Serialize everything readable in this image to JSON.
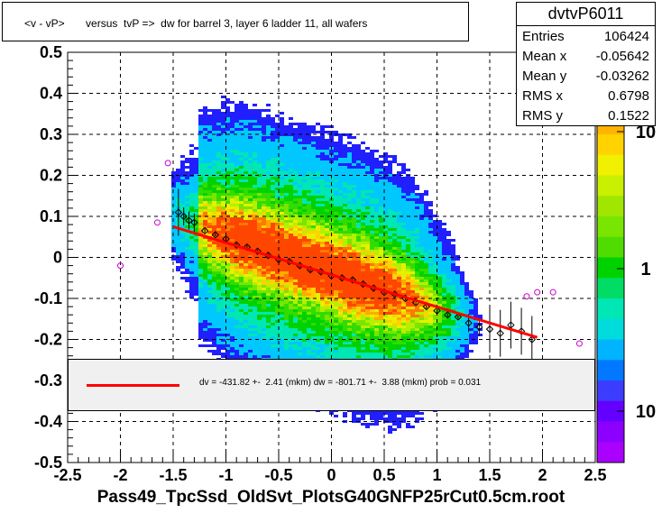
{
  "title": "<v - vP>       versus  tvP =>  dw for barrel 3, layer 6 ladder 11, all wafers",
  "footer": "Pass49_TpcSsd_OldSvt_PlotsG40GNFP25rCut0.5cm.root",
  "stats": {
    "name": "dvtvP6011",
    "rows": [
      {
        "label": "Entries",
        "value": "106424"
      },
      {
        "label": "Mean x",
        "value": "-0.05642"
      },
      {
        "label": "Mean y",
        "value": "-0.03262"
      },
      {
        "label": "RMS x",
        "value": "0.6798"
      },
      {
        "label": "RMS y",
        "value": "0.1522"
      }
    ]
  },
  "legend": {
    "text": "dv = -431.82 +-  2.41 (mkm) dw = -801.71 +-  3.88 (mkm) prob = 0.031",
    "line_color": "#ff0000"
  },
  "chart_data": {
    "type": "heatmap",
    "xlim": [
      -2.5,
      2.5
    ],
    "ylim": [
      -0.5,
      0.5
    ],
    "xticks": [
      "-2.5",
      "-2",
      "-1.5",
      "-1",
      "-0.5",
      "0",
      "0.5",
      "1",
      "1.5",
      "2",
      "2.5"
    ],
    "yticks": [
      "-0.5",
      "-0.4",
      "-0.3",
      "-0.2",
      "-0.1",
      "0",
      "0.1",
      "0.2",
      "0.3",
      "0.4",
      "0.5"
    ],
    "colorbar_labels": [
      "10",
      "1",
      "10"
    ],
    "log_z": true,
    "grid": true,
    "fit_line": {
      "x": [
        -1.5,
        1.95
      ],
      "y": [
        0.075,
        -0.195
      ],
      "color": "#ff0000"
    },
    "profile_points": {
      "x": [
        -1.45,
        -1.4,
        -1.35,
        -1.3,
        -1.2,
        -1.1,
        -1.0,
        -0.9,
        -0.8,
        -0.7,
        -0.6,
        -0.5,
        -0.4,
        -0.3,
        -0.2,
        -0.1,
        0.0,
        0.1,
        0.2,
        0.3,
        0.4,
        0.5,
        0.6,
        0.7,
        0.8,
        0.9,
        1.0,
        1.1,
        1.2,
        1.3,
        1.4,
        1.5,
        1.6,
        1.7,
        1.8,
        1.9
      ],
      "y": [
        0.11,
        0.1,
        0.09,
        0.085,
        0.065,
        0.055,
        0.045,
        0.03,
        0.025,
        0.015,
        0.005,
        -0.005,
        -0.01,
        -0.02,
        -0.03,
        -0.035,
        -0.045,
        -0.05,
        -0.055,
        -0.065,
        -0.075,
        -0.085,
        -0.09,
        -0.1,
        -0.11,
        -0.12,
        -0.13,
        -0.14,
        -0.145,
        -0.16,
        -0.17,
        -0.175,
        -0.185,
        -0.165,
        -0.18,
        -0.2
      ]
    },
    "outlier_points": {
      "x": [
        -2.0,
        -1.65,
        -1.55,
        1.85,
        1.95,
        2.1,
        2.35
      ],
      "y": [
        -0.02,
        0.085,
        0.23,
        -0.095,
        -0.085,
        -0.085,
        -0.21
      ]
    }
  }
}
